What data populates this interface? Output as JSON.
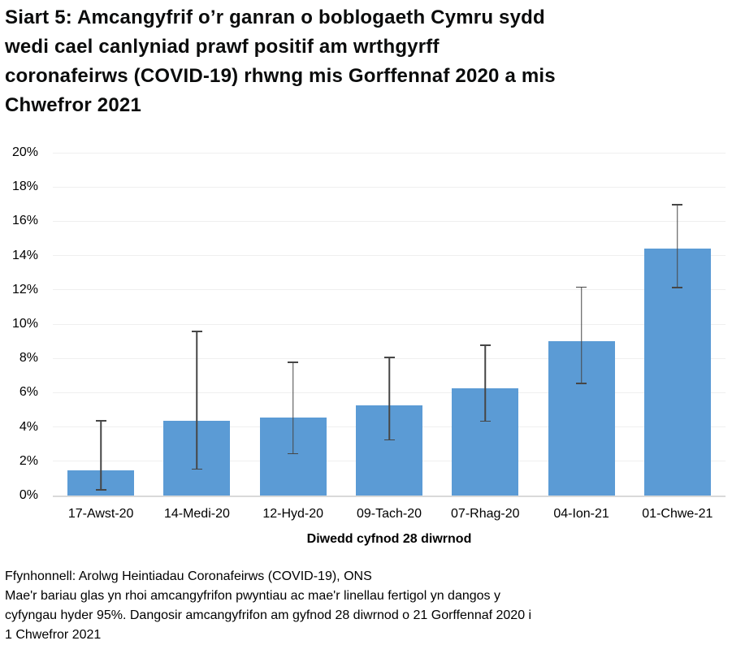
{
  "title": {
    "lines": [
      "Siart 5: Amcangyfrif o’r ganran o boblogaeth Cymru sydd",
      "wedi cael canlyniad prawf positif am wrthgyrff",
      "coronafeirws (COVID-19) rhwng mis Gorffennaf 2020 a mis",
      "Chwefror 2021"
    ]
  },
  "chart_data": {
    "type": "bar",
    "title": "Siart 5: Amcangyfrif o’r ganran o boblogaeth Cymru sydd wedi cael canlyniad prawf positif am wrthgyrff coronafeirws (COVID-19) rhwng mis Gorffennaf 2020 a mis Chwefror 2021",
    "categories": [
      "17-Awst-20",
      "14-Medi-20",
      "12-Hyd-20",
      "09-Tach-20",
      "07-Rhag-20",
      "04-Ion-21",
      "01-Chwe-21"
    ],
    "values": [
      1.45,
      4.35,
      4.55,
      5.25,
      6.25,
      9.0,
      14.4
    ],
    "ci_low": [
      0.3,
      1.5,
      2.4,
      3.2,
      4.3,
      6.5,
      12.1
    ],
    "ci_high": [
      4.4,
      9.6,
      7.8,
      8.1,
      8.8,
      12.2,
      17.0
    ],
    "xlabel": "Diwedd cyfnod 28 diwrnod",
    "ylabel": "",
    "ylim": [
      0,
      20
    ],
    "ytick_step": 2,
    "ytick_labels": [
      "0%",
      "2%",
      "4%",
      "6%",
      "8%",
      "10%",
      "12%",
      "14%",
      "16%",
      "18%",
      "20%"
    ],
    "grid": true,
    "legend": "none",
    "bar_color": "#5b9bd5",
    "error_color": "#464646"
  },
  "footer": {
    "source": "Ffynhonnell: Arolwg Heintiadau Coronafeirws (COVID-19), ONS",
    "note_lines": [
      "Mae'r bariau glas yn rhoi amcangyfrifon pwyntiau ac mae'r linellau fertigol yn dangos y",
      "cyfyngau hyder 95%. Dangosir amcangyfrifon am gyfnod 28 diwrnod o 21 Gorffennaf 2020 i",
      "1 Chwefror 2021"
    ]
  }
}
